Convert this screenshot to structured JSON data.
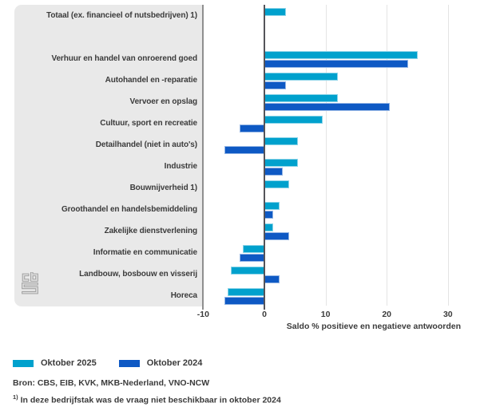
{
  "chart_data": {
    "type": "bar",
    "orientation": "horizontal",
    "title": "",
    "xlabel": "Saldo % positieve en negatieve antwoorden",
    "ylabel": "",
    "x_ticks": [
      -10,
      0,
      10,
      20,
      30
    ],
    "xlim": [
      -10,
      38.5
    ],
    "grid": "vertical",
    "legend_position": "bottom-left",
    "gap_after_first_category": true,
    "categories": [
      "Totaal (ex. financieel of nutsbedrijven) 1)",
      "Verhuur en handel van onroerend goed",
      "Autohandel en -reparatie",
      "Vervoer en opslag",
      "Cultuur, sport en recreatie",
      "Detailhandel (niet in auto's)",
      "Industrie",
      "Bouwnijverheid 1)",
      "Groothandel en handelsbemiddeling",
      "Zakelijke dienstverlening",
      "Informatie en communicatie",
      "Landbouw, bosbouw en visserij",
      "Horeca"
    ],
    "series": [
      {
        "name": "Oktober 2025",
        "color": "#00a1cd",
        "values": [
          3.5,
          25,
          12,
          12,
          9.5,
          5.5,
          5.5,
          4,
          2.5,
          1.5,
          -3.5,
          -5.5,
          -6
        ]
      },
      {
        "name": "Oktober 2024",
        "color": "#0e59c4",
        "values": [
          null,
          23.5,
          3.5,
          20.5,
          -4,
          -6.5,
          3,
          null,
          1.5,
          4,
          -4,
          2.5,
          -6.5
        ]
      }
    ]
  },
  "footer": {
    "source": "Bron: CBS, EIB, KVK, MKB-Nederland, VNO-NCW",
    "footnote_marker": "1)",
    "footnote_text": "In deze bedrijfstak was de vraag niet beschikbaar in oktober 2024"
  },
  "logo": {
    "icon": "cbs-logo"
  }
}
